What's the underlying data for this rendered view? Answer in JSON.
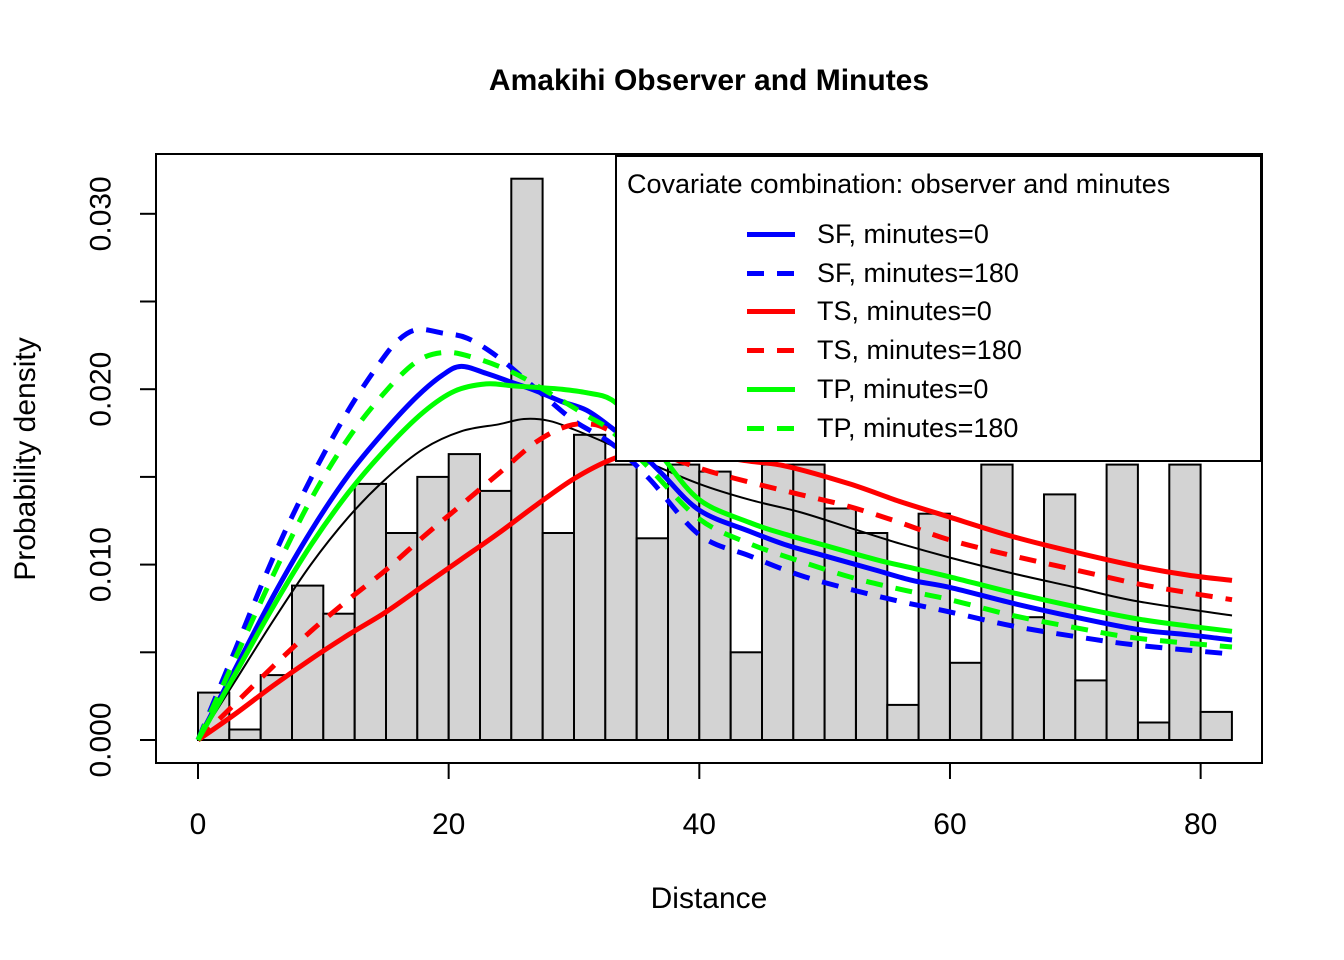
{
  "chart_data": {
    "type": "bar",
    "subtype": "histogram_with_density_curves",
    "title": "Amakihi Observer and Minutes",
    "xlabel": "Distance",
    "ylabel": "Probability density",
    "xlim": [
      0,
      82.5
    ],
    "ylim": [
      0,
      0.0333
    ],
    "grid": false,
    "legend_position": "top-right-inside",
    "x_ticks": [
      {
        "v": 0,
        "label": "0"
      },
      {
        "v": 20,
        "label": "20"
      },
      {
        "v": 40,
        "label": "40"
      },
      {
        "v": 60,
        "label": "60"
      },
      {
        "v": 80,
        "label": "80"
      }
    ],
    "y_ticks": [
      {
        "v": 0.0,
        "label": "0.000"
      },
      {
        "v": 0.005,
        "label": ""
      },
      {
        "v": 0.01,
        "label": "0.010"
      },
      {
        "v": 0.015,
        "label": ""
      },
      {
        "v": 0.02,
        "label": "0.020"
      },
      {
        "v": 0.025,
        "label": ""
      },
      {
        "v": 0.03,
        "label": "0.030"
      }
    ],
    "histogram": {
      "start": 0,
      "bin_width": 2.5,
      "fill": "#d3d3d3",
      "border": "#000000",
      "densities": [
        0.0027,
        0.0006,
        0.0037,
        0.0088,
        0.0072,
        0.0146,
        0.0118,
        0.015,
        0.0163,
        0.0142,
        0.032,
        0.0118,
        0.0174,
        0.0157,
        0.0115,
        0.0157,
        0.0153,
        0.005,
        0.0157,
        0.0157,
        0.0132,
        0.0118,
        0.002,
        0.0129,
        0.0044,
        0.0157,
        0.007,
        0.014,
        0.0034,
        0.0157,
        0.001,
        0.0157,
        0.0016
      ]
    },
    "series": [
      {
        "name": "average",
        "color": "#000000",
        "dashed": false,
        "width": 2,
        "in_legend": false,
        "points": [
          [
            0,
            0
          ],
          [
            3,
            0.0034
          ],
          [
            6,
            0.0068
          ],
          [
            9,
            0.01
          ],
          [
            12,
            0.0127
          ],
          [
            15,
            0.0149
          ],
          [
            18,
            0.0166
          ],
          [
            21,
            0.0176
          ],
          [
            24,
            0.018
          ],
          [
            26,
            0.0183
          ],
          [
            28,
            0.0182
          ],
          [
            30,
            0.0177
          ],
          [
            33,
            0.0168
          ],
          [
            36,
            0.0158
          ],
          [
            40,
            0.0146
          ],
          [
            44,
            0.0137
          ],
          [
            48,
            0.013
          ],
          [
            52,
            0.0121
          ],
          [
            56,
            0.0112
          ],
          [
            60,
            0.0104
          ],
          [
            65,
            0.0095
          ],
          [
            70,
            0.0087
          ],
          [
            75,
            0.0079
          ],
          [
            82.5,
            0.0071
          ]
        ]
      },
      {
        "name": "SF, minutes=0",
        "color": "#0000ff",
        "dashed": false,
        "width": 5,
        "in_legend": true,
        "points": [
          [
            0,
            0
          ],
          [
            3,
            0.0041
          ],
          [
            6,
            0.0082
          ],
          [
            9,
            0.0119
          ],
          [
            12,
            0.0151
          ],
          [
            15,
            0.0177
          ],
          [
            17.5,
            0.0196
          ],
          [
            19.5,
            0.0208
          ],
          [
            21,
            0.0213
          ],
          [
            23,
            0.0209
          ],
          [
            25,
            0.0204
          ],
          [
            27,
            0.0199
          ],
          [
            29,
            0.0193
          ],
          [
            31,
            0.0188
          ],
          [
            33,
            0.0178
          ],
          [
            35,
            0.0166
          ],
          [
            37,
            0.0152
          ],
          [
            40,
            0.0131
          ],
          [
            44,
            0.0119
          ],
          [
            47,
            0.0111
          ],
          [
            50,
            0.0105
          ],
          [
            54,
            0.0097
          ],
          [
            57,
            0.0091
          ],
          [
            60,
            0.0087
          ],
          [
            65,
            0.0078
          ],
          [
            70,
            0.007
          ],
          [
            75,
            0.0063
          ],
          [
            79,
            0.006
          ],
          [
            82.5,
            0.0057
          ]
        ]
      },
      {
        "name": "SF, minutes=180",
        "color": "#0000ff",
        "dashed": true,
        "width": 5,
        "in_legend": true,
        "points": [
          [
            0,
            0
          ],
          [
            3,
            0.0052
          ],
          [
            6,
            0.0104
          ],
          [
            9,
            0.0149
          ],
          [
            12,
            0.0188
          ],
          [
            14.5,
            0.0215
          ],
          [
            16,
            0.0228
          ],
          [
            17.5,
            0.0234
          ],
          [
            19.5,
            0.0232
          ],
          [
            21.5,
            0.0229
          ],
          [
            24,
            0.0218
          ],
          [
            27,
            0.02
          ],
          [
            30,
            0.0182
          ],
          [
            33,
            0.0169
          ],
          [
            36,
            0.0149
          ],
          [
            40,
            0.0117
          ],
          [
            44,
            0.0105
          ],
          [
            48,
            0.0094
          ],
          [
            52,
            0.0086
          ],
          [
            56,
            0.0079
          ],
          [
            60,
            0.0073
          ],
          [
            65,
            0.0065
          ],
          [
            70,
            0.0059
          ],
          [
            75,
            0.0054
          ],
          [
            82.5,
            0.0049
          ]
        ]
      },
      {
        "name": "TS, minutes=0",
        "color": "#ff0000",
        "dashed": false,
        "width": 5,
        "in_legend": true,
        "points": [
          [
            0,
            0
          ],
          [
            3,
            0.0015
          ],
          [
            6,
            0.0031
          ],
          [
            9,
            0.0046
          ],
          [
            12,
            0.006
          ],
          [
            15,
            0.0073
          ],
          [
            18,
            0.0088
          ],
          [
            21,
            0.0103
          ],
          [
            24,
            0.0118
          ],
          [
            27,
            0.0134
          ],
          [
            30,
            0.0149
          ],
          [
            33,
            0.016
          ],
          [
            35,
            0.0163
          ],
          [
            38,
            0.0164
          ],
          [
            41,
            0.0162
          ],
          [
            44,
            0.0159
          ],
          [
            47,
            0.0156
          ],
          [
            52,
            0.0146
          ],
          [
            56,
            0.0136
          ],
          [
            60,
            0.0127
          ],
          [
            65,
            0.0116
          ],
          [
            70,
            0.0107
          ],
          [
            75,
            0.0099
          ],
          [
            79,
            0.0094
          ],
          [
            82.5,
            0.0091
          ]
        ]
      },
      {
        "name": "TS, minutes=180",
        "color": "#ff0000",
        "dashed": true,
        "width": 5,
        "in_legend": true,
        "points": [
          [
            0,
            0
          ],
          [
            3,
            0.0021
          ],
          [
            6,
            0.0042
          ],
          [
            9,
            0.0062
          ],
          [
            12,
            0.008
          ],
          [
            15,
            0.0097
          ],
          [
            18,
            0.0116
          ],
          [
            21,
            0.0134
          ],
          [
            24,
            0.0152
          ],
          [
            27,
            0.017
          ],
          [
            29.5,
            0.0179
          ],
          [
            31.5,
            0.018
          ],
          [
            33,
            0.0176
          ],
          [
            36,
            0.0166
          ],
          [
            40,
            0.0155
          ],
          [
            44,
            0.0147
          ],
          [
            48,
            0.014
          ],
          [
            52,
            0.0133
          ],
          [
            56,
            0.0124
          ],
          [
            60,
            0.0114
          ],
          [
            65,
            0.0105
          ],
          [
            70,
            0.0097
          ],
          [
            75,
            0.0089
          ],
          [
            79,
            0.0084
          ],
          [
            82.5,
            0.008
          ]
        ]
      },
      {
        "name": "TP, minutes=0",
        "color": "#00ff00",
        "dashed": false,
        "width": 5,
        "in_legend": true,
        "points": [
          [
            0,
            0
          ],
          [
            3,
            0.0038
          ],
          [
            6,
            0.0076
          ],
          [
            9,
            0.0111
          ],
          [
            12,
            0.0141
          ],
          [
            15,
            0.0166
          ],
          [
            18,
            0.0187
          ],
          [
            20.5,
            0.0199
          ],
          [
            23,
            0.0203
          ],
          [
            25,
            0.0202
          ],
          [
            27,
            0.0201
          ],
          [
            29,
            0.02
          ],
          [
            31,
            0.0198
          ],
          [
            33,
            0.0194
          ],
          [
            35,
            0.018
          ],
          [
            37,
            0.0162
          ],
          [
            40,
            0.0137
          ],
          [
            44,
            0.0124
          ],
          [
            47,
            0.0117
          ],
          [
            50,
            0.0111
          ],
          [
            54,
            0.0103
          ],
          [
            57,
            0.0098
          ],
          [
            60,
            0.0093
          ],
          [
            65,
            0.0084
          ],
          [
            70,
            0.0076
          ],
          [
            75,
            0.0069
          ],
          [
            79,
            0.0065
          ],
          [
            82.5,
            0.0062
          ]
        ]
      },
      {
        "name": "TP, minutes=180",
        "color": "#00ff00",
        "dashed": true,
        "width": 5,
        "in_legend": true,
        "points": [
          [
            0,
            0
          ],
          [
            3,
            0.0047
          ],
          [
            6,
            0.0094
          ],
          [
            9,
            0.0137
          ],
          [
            12,
            0.0172
          ],
          [
            15,
            0.0199
          ],
          [
            17.5,
            0.0216
          ],
          [
            19.7,
            0.0221
          ],
          [
            22,
            0.0218
          ],
          [
            25,
            0.021
          ],
          [
            28,
            0.0198
          ],
          [
            31,
            0.0185
          ],
          [
            33,
            0.0176
          ],
          [
            36,
            0.0155
          ],
          [
            40,
            0.0126
          ],
          [
            44,
            0.0112
          ],
          [
            48,
            0.0102
          ],
          [
            52,
            0.0093
          ],
          [
            56,
            0.0086
          ],
          [
            60,
            0.008
          ],
          [
            65,
            0.0071
          ],
          [
            70,
            0.0064
          ],
          [
            75,
            0.0058
          ],
          [
            82.5,
            0.0053
          ]
        ]
      }
    ],
    "legend": {
      "title": "Covariate combination: observer and minutes",
      "items": [
        {
          "label": "SF, minutes=0",
          "color": "#0000ff",
          "dashed": false
        },
        {
          "label": "SF, minutes=180",
          "color": "#0000ff",
          "dashed": true
        },
        {
          "label": "TS, minutes=0",
          "color": "#ff0000",
          "dashed": false
        },
        {
          "label": "TS, minutes=180",
          "color": "#ff0000",
          "dashed": true
        },
        {
          "label": "TP, minutes=0",
          "color": "#00ff00",
          "dashed": false
        },
        {
          "label": "TP, minutes=180",
          "color": "#00ff00",
          "dashed": true
        }
      ]
    }
  }
}
